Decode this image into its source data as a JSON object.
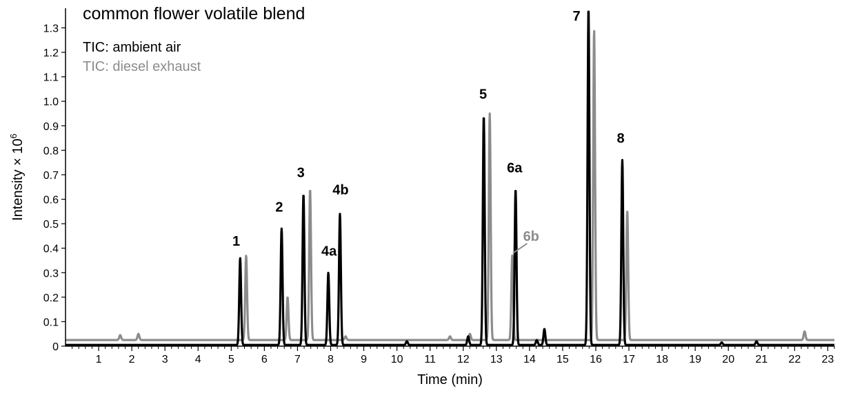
{
  "chart_data": {
    "type": "line",
    "title": "common flower volatile blend",
    "xlabel": "Time (min)",
    "ylabel_base": "Intensity × 10",
    "ylabel_exp": "6",
    "xlim": [
      0,
      23.2
    ],
    "ylim": [
      0,
      1.38
    ],
    "x_ticks": [
      1,
      2,
      3,
      4,
      5,
      6,
      7,
      8,
      9,
      10,
      11,
      12,
      13,
      14,
      15,
      16,
      17,
      18,
      19,
      20,
      21,
      22,
      23
    ],
    "x_tick_labels": [
      "1",
      "2",
      "3",
      "4",
      "5",
      "6",
      "7",
      "8",
      "9",
      "10",
      "11",
      "12",
      "13",
      "14",
      "15",
      "16",
      "17",
      "18",
      "19",
      "20",
      "21",
      "22",
      "23"
    ],
    "y_ticks": [
      0,
      0.1,
      0.2,
      0.3,
      0.4,
      0.5,
      0.6,
      0.7,
      0.8,
      0.9,
      1.0,
      1.1,
      1.2,
      1.3
    ],
    "y_tick_labels": [
      "0",
      "0.1",
      "0.2",
      "0.3",
      "0.4",
      "0.5",
      "0.6",
      "0.7",
      "0.8",
      "0.9",
      "1.0",
      "1.1",
      "1.2",
      "1.3"
    ],
    "series": [
      {
        "name": "TIC: ambient air",
        "color": "#000000",
        "baseline": 0.005,
        "peaks": [
          {
            "x": 5.27,
            "y": 0.36
          },
          {
            "x": 6.52,
            "y": 0.48
          },
          {
            "x": 7.18,
            "y": 0.62
          },
          {
            "x": 7.93,
            "y": 0.3
          },
          {
            "x": 8.28,
            "y": 0.54
          },
          {
            "x": 10.3,
            "y": 0.02
          },
          {
            "x": 12.15,
            "y": 0.04
          },
          {
            "x": 12.62,
            "y": 0.94
          },
          {
            "x": 13.58,
            "y": 0.64
          },
          {
            "x": 14.45,
            "y": 0.07
          },
          {
            "x": 14.22,
            "y": 0.025
          },
          {
            "x": 15.78,
            "y": 1.38
          },
          {
            "x": 16.8,
            "y": 0.76
          },
          {
            "x": 19.8,
            "y": 0.015
          },
          {
            "x": 20.85,
            "y": 0.02
          }
        ]
      },
      {
        "name": "TIC: diesel exhaust",
        "color": "#8c8c8c",
        "baseline": 0.025,
        "peaks": [
          {
            "x": 1.65,
            "y": 0.045
          },
          {
            "x": 2.2,
            "y": 0.05
          },
          {
            "x": 5.45,
            "y": 0.37
          },
          {
            "x": 6.7,
            "y": 0.2
          },
          {
            "x": 7.38,
            "y": 0.64
          },
          {
            "x": 8.45,
            "y": 0.04
          },
          {
            "x": 11.6,
            "y": 0.04
          },
          {
            "x": 12.2,
            "y": 0.05
          },
          {
            "x": 12.8,
            "y": 0.95
          },
          {
            "x": 13.48,
            "y": 0.37
          },
          {
            "x": 15.95,
            "y": 1.29
          },
          {
            "x": 16.95,
            "y": 0.55
          },
          {
            "x": 22.3,
            "y": 0.06
          }
        ]
      }
    ],
    "peak_labels": [
      {
        "text": "1",
        "x": 5.15,
        "y": 0.41,
        "color": "#000000"
      },
      {
        "text": "2",
        "x": 6.45,
        "y": 0.55,
        "color": "#000000"
      },
      {
        "text": "3",
        "x": 7.1,
        "y": 0.69,
        "color": "#000000"
      },
      {
        "text": "4a",
        "x": 7.95,
        "y": 0.37,
        "color": "#000000"
      },
      {
        "text": "4b",
        "x": 8.3,
        "y": 0.62,
        "color": "#000000"
      },
      {
        "text": "5",
        "x": 12.6,
        "y": 1.01,
        "color": "#000000"
      },
      {
        "text": "6a",
        "x": 13.55,
        "y": 0.71,
        "color": "#000000"
      },
      {
        "text": "6b",
        "x": 14.05,
        "y": 0.43,
        "color": "#8c8c8c"
      },
      {
        "text": "7",
        "x": 15.42,
        "y": 1.33,
        "color": "#000000"
      },
      {
        "text": "8",
        "x": 16.75,
        "y": 0.83,
        "color": "#000000"
      }
    ]
  }
}
